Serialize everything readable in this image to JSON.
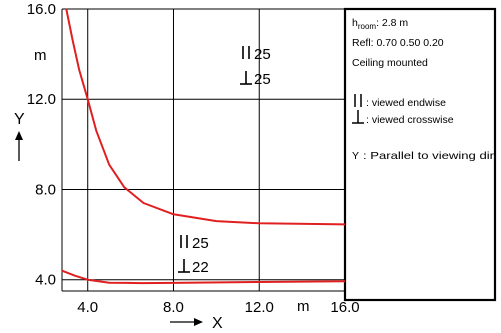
{
  "chart_data": {
    "type": "line",
    "x": {
      "label": "X",
      "unit": "m",
      "range": [
        2.8,
        16.0
      ],
      "ticks": [
        4.0,
        8.0,
        12.0,
        16.0
      ],
      "tick_labels": [
        "4.0",
        "8.0",
        "12.0",
        "16.0"
      ]
    },
    "y": {
      "label": "Y",
      "unit": "m",
      "range": [
        3.5,
        16.0
      ],
      "ticks": [
        4.0,
        8.0,
        12.0,
        16.0
      ],
      "tick_labels": [
        "4.0",
        "8.0",
        "12.0",
        "16.0"
      ]
    },
    "grid": true,
    "series": [
      {
        "color": "#e02020",
        "points": [
          [
            3.0,
            16.0
          ],
          [
            3.3,
            14.6
          ],
          [
            3.6,
            13.3
          ],
          [
            4.0,
            12.0
          ],
          [
            4.4,
            10.6
          ],
          [
            5.0,
            9.1
          ],
          [
            5.7,
            8.1
          ],
          [
            6.6,
            7.4
          ],
          [
            8.0,
            6.9
          ],
          [
            10.0,
            6.6
          ],
          [
            12.0,
            6.5
          ],
          [
            16.0,
            6.45
          ]
        ]
      },
      {
        "color": "#e02020",
        "points": [
          [
            2.8,
            4.4
          ],
          [
            3.4,
            4.18
          ],
          [
            4.0,
            4.0
          ],
          [
            5.0,
            3.87
          ],
          [
            6.5,
            3.85
          ],
          [
            8.0,
            3.86
          ],
          [
            12.0,
            3.9
          ],
          [
            16.0,
            3.93
          ]
        ]
      }
    ],
    "annotations": {
      "upper_endwise": "25",
      "upper_crosswise": "25",
      "lower_endwise": "25",
      "lower_crosswise": "22"
    }
  },
  "info_panel": {
    "h_main": "h",
    "h_sub": "room",
    "h_value": ": 2.8 m",
    "refl": "Refl: 0.70 0.50 0.20",
    "mount": "Ceiling mounted",
    "endwise_text": ": viewed endwise",
    "crosswise_text": ": viewed crosswise",
    "y_legend_key": "Y",
    "y_legend_text": ": Parallel to viewing dir"
  },
  "icons": {
    "endwise": "parallel-bars-icon",
    "crosswise": "perpendicular-icon"
  }
}
